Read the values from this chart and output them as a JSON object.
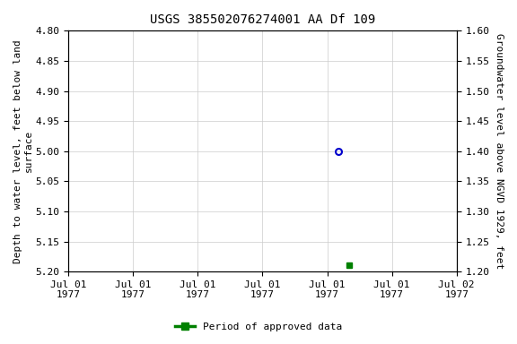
{
  "title": "USGS 385502076274001 AA Df 109",
  "left_ylabel_line1": "Depth to water level, feet below land",
  "left_ylabel_line2": "surface",
  "right_ylabel": "Groundwater level above NGVD 1929, feet",
  "ylim_left_top": 4.8,
  "ylim_left_bottom": 5.2,
  "left_yticks": [
    4.8,
    4.85,
    4.9,
    4.95,
    5.0,
    5.05,
    5.1,
    5.15,
    5.2
  ],
  "right_yticks": [
    1.6,
    1.55,
    1.5,
    1.45,
    1.4,
    1.35,
    1.3,
    1.25,
    1.2
  ],
  "blue_point_x_hours": 75,
  "blue_point_y": 5.0,
  "green_point_x_hours": 78,
  "green_point_y": 5.19,
  "x_range_hours": 108,
  "x_tick_hours": [
    0,
    18,
    36,
    54,
    72,
    90,
    108
  ],
  "x_tick_labels": [
    "Jul 01\n1977",
    "Jul 01\n1977",
    "Jul 01\n1977",
    "Jul 01\n1977",
    "Jul 01\n1977",
    "Jul 01\n1977",
    "Jul 02\n1977"
  ],
  "legend_label": "Period of approved data",
  "title_fontsize": 10,
  "axis_label_fontsize": 8,
  "tick_fontsize": 8,
  "background_color": "#ffffff",
  "grid_color": "#cccccc",
  "blue_marker_color": "#0000cc",
  "green_marker_color": "#008000"
}
